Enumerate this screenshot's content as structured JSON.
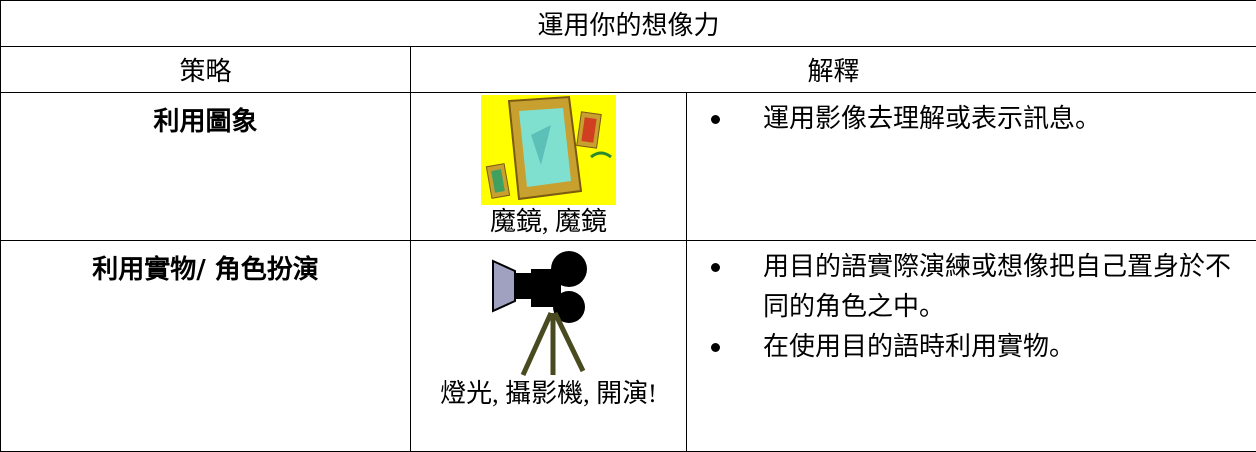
{
  "table": {
    "title": "運用你的想像力",
    "headers": [
      "策略",
      "解釋"
    ],
    "rows": [
      {
        "strategy": "利用圖象",
        "caption": "魔鏡, 魔鏡",
        "points": [
          "運用影像去理解或表示訊息。"
        ]
      },
      {
        "strategy": "利用實物/ 角色扮演",
        "caption": "燈光, 攝影機, 開演!",
        "points": [
          "用目的語實際演練或想像把自己置身於不同的角色之中。",
          "在使用目的語時利用實物。"
        ]
      }
    ]
  }
}
